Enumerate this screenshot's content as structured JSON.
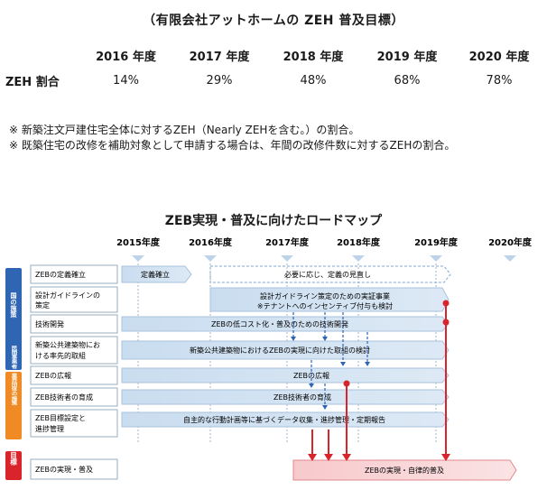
{
  "zeh_title": "（有限会社アットホームの ZEH 普及目標）",
  "zeh_table": {
    "corner": "",
    "years": [
      "2016 年度",
      "2017 年度",
      "2018 年度",
      "2019 年度",
      "2020 年度"
    ],
    "row_label": "ZEH 割合",
    "values": [
      "14%",
      "29%",
      "48%",
      "68%",
      "78%"
    ]
  },
  "notes": [
    "※  新築注文戸建住宅全体に対するZEH（Nearly  ZEHを含む。）の割合。",
    "※  既築住宅の改修を補助対象として申請する場合は、年間の改修件数に対するZEHの割合。"
  ],
  "roadmap": {
    "title": "ZEB実現・普及に向けたロードマップ",
    "years": [
      "2015年度",
      "2016年度",
      "2017年度",
      "2018年度",
      "2019年度",
      "2020年度"
    ],
    "groups": [
      {
        "label": "国の施策",
        "color": "#2f66b3"
      },
      {
        "label": "民間事業者・業界団体の施策",
        "color": "#f08a24"
      },
      {
        "label": "目標",
        "color": "#d9242b"
      }
    ],
    "rows": [
      "ZEBの定義確立",
      "設計ガイドラインの策定",
      "技術開発",
      "新築公共建築物における率先的取組",
      "ZEBの広報",
      "ZEB技術者の育成",
      "ZEB目標設定と進捗管理",
      "ZEBの実現・普及"
    ],
    "bars": {
      "definition": "定義確立",
      "review": "必要に応じ、定義の見直し",
      "guideline_line1": "設計ガイドライン策定のための実証事業",
      "guideline_line2": "※テナントへのインセンティブ付与も検討",
      "tech": "ZEBの低コスト化・普及のための技術開発",
      "public": "新築公共建築物におけるZEBの実現に向けた取組の検討",
      "pr": "ZEBの広報",
      "training": "ZEB技術者の育成",
      "targets": "自主的な行動計画等に基づくデータ収集・進捗管理・定期報告",
      "goal": "ZEBの実現・自律的普及"
    }
  }
}
